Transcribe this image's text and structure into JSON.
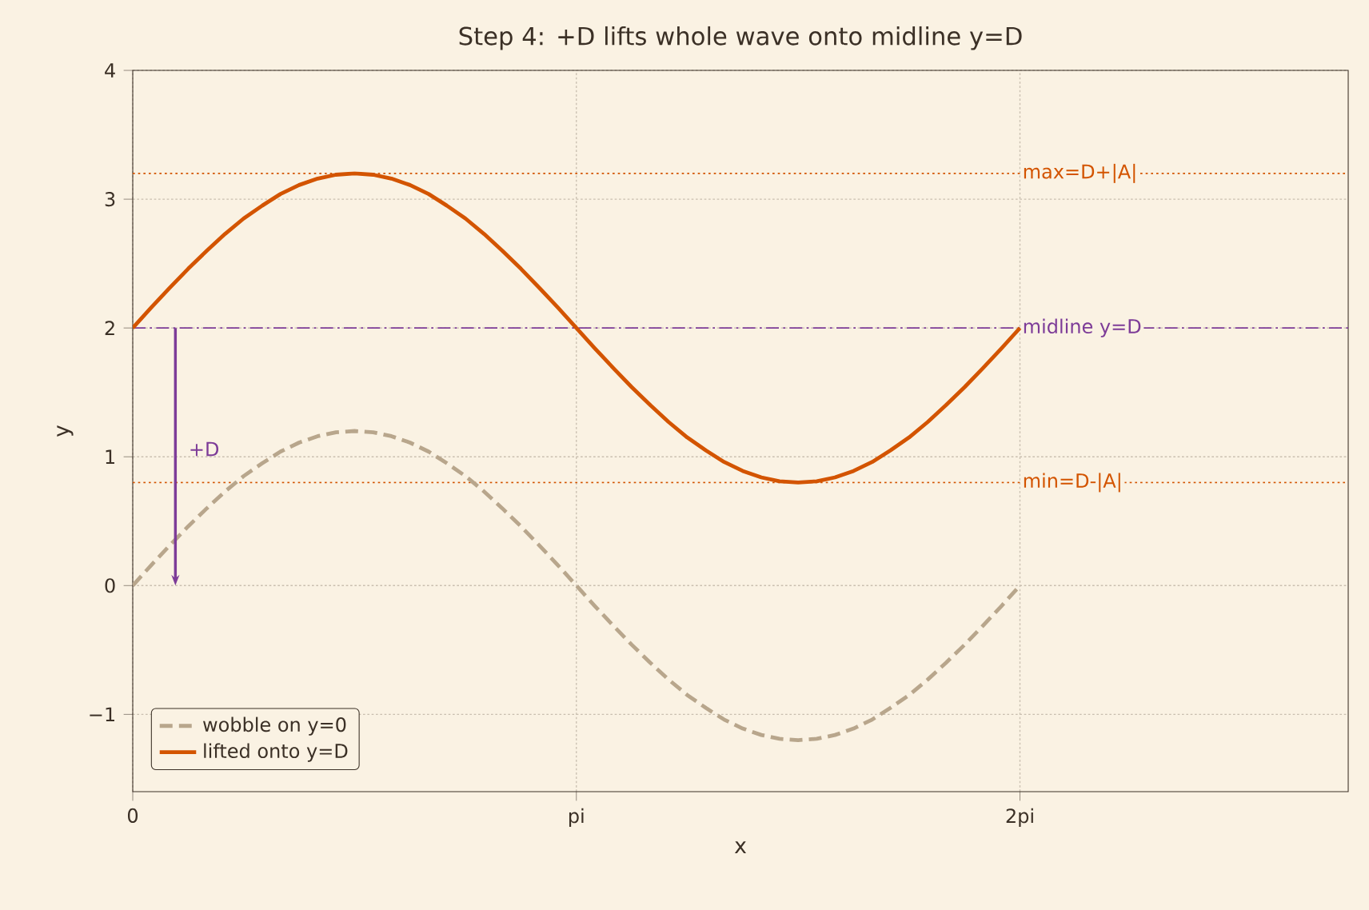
{
  "chart_data": {
    "type": "line",
    "title": "Step 4: +D lifts whole wave onto midline y=D",
    "xlabel": "x",
    "ylabel": "y",
    "x": [
      0,
      0.042,
      0.083,
      0.125,
      0.167,
      0.208,
      0.25,
      0.292,
      0.333,
      0.375,
      0.417,
      0.458,
      0.5,
      0.542,
      0.583,
      0.625,
      0.667,
      0.708,
      0.75,
      0.792,
      0.833,
      0.875,
      0.917,
      0.958,
      1,
      1.042,
      1.083,
      1.125,
      1.167,
      1.208,
      1.25,
      1.292,
      1.333,
      1.375,
      1.417,
      1.458,
      1.5,
      1.542,
      1.583,
      1.625,
      1.667,
      1.708,
      1.75,
      1.792,
      1.833,
      1.875,
      1.917,
      1.958,
      2
    ],
    "series": [
      {
        "name": "wobble on y=0",
        "color": "#b8a68c",
        "line_style": "dashed",
        "values": [
          0,
          0.16,
          0.31,
          0.46,
          0.6,
          0.73,
          0.85,
          0.95,
          1.04,
          1.11,
          1.16,
          1.19,
          1.2,
          1.19,
          1.16,
          1.11,
          1.04,
          0.95,
          0.85,
          0.73,
          0.6,
          0.46,
          0.31,
          0.16,
          0,
          -0.16,
          -0.31,
          -0.46,
          -0.6,
          -0.73,
          -0.85,
          -0.95,
          -1.04,
          -1.11,
          -1.16,
          -1.19,
          -1.2,
          -1.19,
          -1.16,
          -1.11,
          -1.04,
          -0.95,
          -0.85,
          -0.73,
          -0.6,
          -0.46,
          -0.31,
          -0.16,
          0
        ]
      },
      {
        "name": "lifted onto y=D",
        "color": "#d35400",
        "line_style": "solid",
        "values": [
          2,
          2.16,
          2.31,
          2.46,
          2.6,
          2.73,
          2.85,
          2.95,
          3.04,
          3.11,
          3.16,
          3.19,
          3.2,
          3.19,
          3.16,
          3.11,
          3.04,
          2.95,
          2.85,
          2.73,
          2.6,
          2.46,
          2.31,
          2.16,
          2,
          1.84,
          1.69,
          1.54,
          1.4,
          1.27,
          1.15,
          1.05,
          0.96,
          0.89,
          0.84,
          0.81,
          0.8,
          0.81,
          0.84,
          0.89,
          0.96,
          1.05,
          1.15,
          1.27,
          1.4,
          1.54,
          1.69,
          1.84,
          2
        ]
      }
    ],
    "xlim": [
      0,
      2.74
    ],
    "ylim": [
      -1.6,
      4
    ],
    "xticks": [
      0,
      {
        "value": 1,
        "label": "pi"
      },
      {
        "value": 2,
        "label": "2pi"
      }
    ],
    "yticks": [
      {
        "value": -1,
        "label": "−1"
      },
      0,
      1,
      2,
      3,
      4
    ],
    "ref_lines": [
      {
        "axis": "y",
        "value": 3.2,
        "label": "max=D+|A|",
        "color": "#d35400",
        "line_style": "dotted"
      },
      {
        "axis": "y",
        "value": 2,
        "label": "midline y=D",
        "color": "#7d3c98",
        "line_style": "dashdot"
      },
      {
        "axis": "y",
        "value": 0.8,
        "label": "min=D-|A|",
        "color": "#d35400",
        "line_style": "dotted"
      }
    ],
    "annotations": [
      "+D"
    ],
    "grid": true,
    "legend": "bottom left"
  }
}
